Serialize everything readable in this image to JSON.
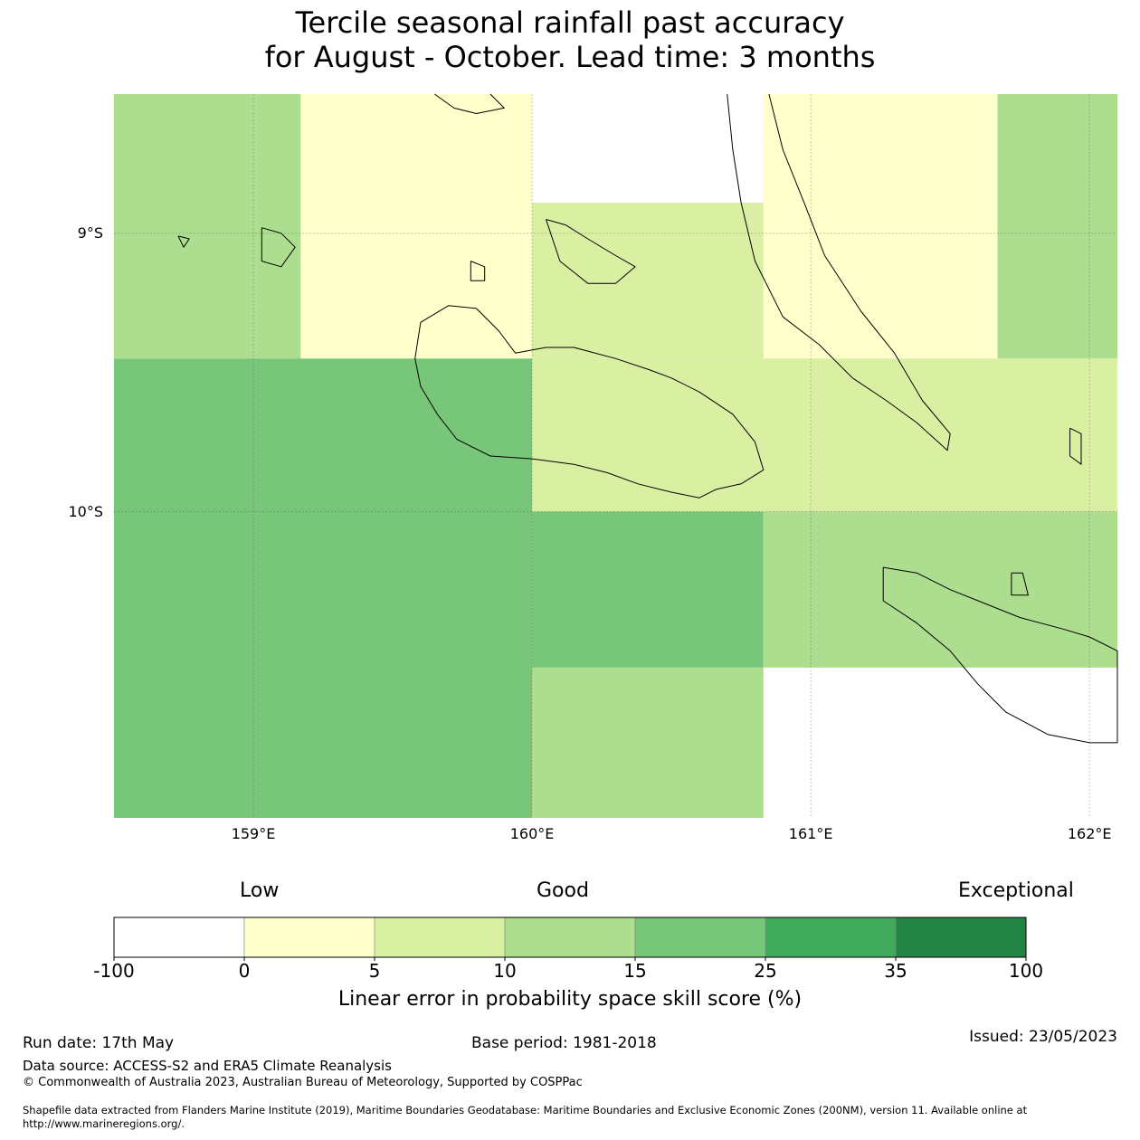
{
  "title": {
    "line1": "Tercile seasonal rainfall past accuracy",
    "line2": "for August - October. Lead time: 3 months"
  },
  "map": {
    "lon_range": [
      158.5,
      162.1
    ],
    "lat_range": [
      -11.1,
      -8.5
    ],
    "lon_ticks": [
      {
        "value": 159,
        "label": "159°E"
      },
      {
        "value": 160,
        "label": "160°E"
      },
      {
        "value": 161,
        "label": "161°E"
      },
      {
        "value": 162,
        "label": "162°E"
      }
    ],
    "lat_ticks": [
      {
        "value": -9,
        "label": "9°S"
      },
      {
        "value": -10,
        "label": "10°S"
      }
    ],
    "cells": [
      {
        "lon": [
          158.5,
          159.17
        ],
        "lat": [
          -9.45,
          -8.5
        ],
        "color": "#addd8e"
      },
      {
        "lon": [
          159.17,
          160.0
        ],
        "lat": [
          -9.45,
          -8.5
        ],
        "color": "#ffffcc"
      },
      {
        "lon": [
          160.0,
          160.83
        ],
        "lat": [
          -8.89,
          -8.5
        ],
        "color": "#ffffff"
      },
      {
        "lon": [
          160.0,
          160.83
        ],
        "lat": [
          -9.45,
          -8.89
        ],
        "color": "#d9f0a3"
      },
      {
        "lon": [
          160.83,
          161.67
        ],
        "lat": [
          -9.45,
          -8.5
        ],
        "color": "#ffffcc"
      },
      {
        "lon": [
          161.67,
          162.1
        ],
        "lat": [
          -9.45,
          -8.5
        ],
        "color": "#addd8e"
      },
      {
        "lon": [
          158.5,
          160.0
        ],
        "lat": [
          -11.1,
          -9.45
        ],
        "color": "#78c679"
      },
      {
        "lon": [
          160.0,
          162.1
        ],
        "lat": [
          -10.0,
          -9.45
        ],
        "color": "#d9f0a3"
      },
      {
        "lon": [
          160.0,
          160.83
        ],
        "lat": [
          -10.56,
          -10.0
        ],
        "color": "#78c679"
      },
      {
        "lon": [
          160.83,
          162.1
        ],
        "lat": [
          -10.56,
          -10.0
        ],
        "color": "#addd8e"
      },
      {
        "lon": [
          160.0,
          160.83
        ],
        "lat": [
          -11.1,
          -10.56
        ],
        "color": "#addd8e"
      }
    ],
    "coastlines": [
      {
        "name": "guadalcanal",
        "points": [
          [
            159.6,
            -9.32
          ],
          [
            159.7,
            -9.26
          ],
          [
            159.8,
            -9.27
          ],
          [
            159.88,
            -9.35
          ],
          [
            159.94,
            -9.43
          ],
          [
            160.05,
            -9.41
          ],
          [
            160.15,
            -9.41
          ],
          [
            160.3,
            -9.45
          ],
          [
            160.42,
            -9.49
          ],
          [
            160.5,
            -9.52
          ],
          [
            160.6,
            -9.57
          ],
          [
            160.72,
            -9.65
          ],
          [
            160.8,
            -9.75
          ],
          [
            160.83,
            -9.85
          ],
          [
            160.75,
            -9.9
          ],
          [
            160.66,
            -9.92
          ],
          [
            160.6,
            -9.95
          ],
          [
            160.5,
            -9.93
          ],
          [
            160.38,
            -9.9
          ],
          [
            160.27,
            -9.86
          ],
          [
            160.15,
            -9.83
          ],
          [
            160.0,
            -9.81
          ],
          [
            159.85,
            -9.8
          ],
          [
            159.73,
            -9.74
          ],
          [
            159.66,
            -9.65
          ],
          [
            159.6,
            -9.55
          ],
          [
            159.58,
            -9.45
          ],
          [
            159.6,
            -9.32
          ]
        ]
      },
      {
        "name": "malaita",
        "points": [
          [
            160.7,
            -8.5
          ],
          [
            160.72,
            -8.7
          ],
          [
            160.75,
            -8.89
          ],
          [
            160.8,
            -9.1
          ],
          [
            160.9,
            -9.3
          ],
          [
            161.03,
            -9.4
          ],
          [
            161.15,
            -9.52
          ],
          [
            161.27,
            -9.6
          ],
          [
            161.38,
            -9.68
          ],
          [
            161.49,
            -9.78
          ],
          [
            161.5,
            -9.72
          ],
          [
            161.4,
            -9.6
          ],
          [
            161.3,
            -9.43
          ],
          [
            161.18,
            -9.28
          ],
          [
            161.05,
            -9.08
          ],
          [
            160.98,
            -8.9
          ],
          [
            160.9,
            -8.7
          ],
          [
            160.85,
            -8.5
          ]
        ]
      },
      {
        "name": "makira",
        "points": [
          [
            161.26,
            -10.2
          ],
          [
            161.38,
            -10.22
          ],
          [
            161.5,
            -10.28
          ],
          [
            161.6,
            -10.32
          ],
          [
            161.75,
            -10.38
          ],
          [
            161.9,
            -10.42
          ],
          [
            162.0,
            -10.45
          ],
          [
            162.1,
            -10.5
          ],
          [
            162.1,
            -10.83
          ],
          [
            162.0,
            -10.83
          ],
          [
            161.85,
            -10.8
          ],
          [
            161.7,
            -10.72
          ],
          [
            161.6,
            -10.62
          ],
          [
            161.5,
            -10.5
          ],
          [
            161.38,
            -10.4
          ],
          [
            161.26,
            -10.32
          ],
          [
            161.26,
            -10.2
          ]
        ]
      },
      {
        "name": "nggela",
        "points": [
          [
            160.05,
            -8.95
          ],
          [
            160.12,
            -8.97
          ],
          [
            160.2,
            -9.02
          ],
          [
            160.3,
            -9.08
          ],
          [
            160.37,
            -9.12
          ],
          [
            160.3,
            -9.18
          ],
          [
            160.2,
            -9.18
          ],
          [
            160.1,
            -9.1
          ],
          [
            160.05,
            -8.95
          ]
        ]
      },
      {
        "name": "russell",
        "points": [
          [
            159.03,
            -8.98
          ],
          [
            159.1,
            -9.0
          ],
          [
            159.15,
            -9.05
          ],
          [
            159.1,
            -9.12
          ],
          [
            159.03,
            -9.1
          ],
          [
            159.03,
            -8.98
          ]
        ]
      },
      {
        "name": "savo",
        "points": [
          [
            159.78,
            -9.1
          ],
          [
            159.83,
            -9.12
          ],
          [
            159.83,
            -9.17
          ],
          [
            159.78,
            -9.17
          ],
          [
            159.78,
            -9.1
          ]
        ]
      },
      {
        "name": "florida-north",
        "points": [
          [
            159.65,
            -8.5
          ],
          [
            159.72,
            -8.55
          ],
          [
            159.8,
            -8.57
          ],
          [
            159.9,
            -8.55
          ],
          [
            159.85,
            -8.5
          ]
        ]
      },
      {
        "name": "ulawa",
        "points": [
          [
            161.93,
            -9.7
          ],
          [
            161.97,
            -9.72
          ],
          [
            161.97,
            -9.83
          ],
          [
            161.93,
            -9.8
          ],
          [
            161.93,
            -9.7
          ]
        ]
      },
      {
        "name": "ugi",
        "points": [
          [
            161.72,
            -10.22
          ],
          [
            161.76,
            -10.22
          ],
          [
            161.78,
            -10.3
          ],
          [
            161.72,
            -10.3
          ],
          [
            161.72,
            -10.22
          ]
        ]
      },
      {
        "name": "small-west",
        "points": [
          [
            158.73,
            -9.01
          ],
          [
            158.77,
            -9.02
          ],
          [
            158.75,
            -9.05
          ],
          [
            158.73,
            -9.01
          ]
        ]
      }
    ]
  },
  "legend": {
    "categories": [
      "Low",
      "Good",
      "Exceptional"
    ],
    "bins": [
      {
        "from": "-100",
        "to": "0",
        "color": "#ffffff"
      },
      {
        "from": "0",
        "to": "5",
        "color": "#ffffcc"
      },
      {
        "from": "5",
        "to": "10",
        "color": "#d9f0a3"
      },
      {
        "from": "10",
        "to": "15",
        "color": "#addd8e"
      },
      {
        "from": "15",
        "to": "25",
        "color": "#78c679"
      },
      {
        "from": "25",
        "to": "35",
        "color": "#41ab5d"
      },
      {
        "from": "35",
        "to": "100",
        "color": "#238443"
      }
    ],
    "ticks": [
      "-100",
      "0",
      "5",
      "10",
      "15",
      "25",
      "35",
      "100"
    ],
    "title": "Linear error in probability space skill score (%)"
  },
  "footer": {
    "run_date": "Run date: 17th May",
    "base_period": "Base period: 1981-2018",
    "issued": "Issued: 23/05/2023",
    "data_source": "Data source: ACCESS-S2 and ERA5 Climate Reanalysis",
    "copyright": "© Commonwealth of Australia 2023, Australian Bureau of Meteorology, Supported by COSPPac",
    "shapefile_line1": "Shapefile data extracted from Flanders Marine Institute (2019), Maritime Boundaries Geodatabase: Maritime Boundaries and Exclusive Economic Zones (200NM), version 11. Available online at",
    "shapefile_line2": "http://www.marineregions.org/."
  }
}
